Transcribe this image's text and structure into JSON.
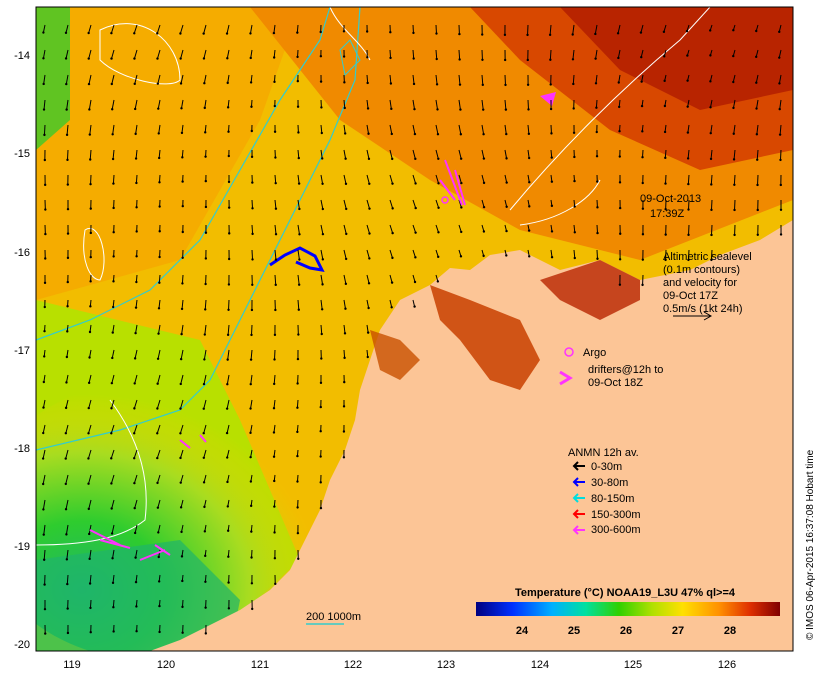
{
  "title_date": "09-Oct-2013",
  "title_time": "17:39Z",
  "altimetry": {
    "line1": "Altimetric sealevel",
    "line2": "(0.1m contours)",
    "line3": "and velocity for",
    "line4": "09-Oct 17Z",
    "line5": "0.5m/s (1kt 24h)"
  },
  "argo_label": "Argo",
  "drifters": {
    "line1": "drifters@12h to",
    "line2": "09-Oct 18Z"
  },
  "anmn": {
    "title": "ANMN 12h av.",
    "items": [
      {
        "label": "0-30m",
        "color": "#000000"
      },
      {
        "label": "30-80m",
        "color": "#0000ff"
      },
      {
        "label": "80-150m",
        "color": "#00dddd"
      },
      {
        "label": "150-300m",
        "color": "#ff0000"
      },
      {
        "label": "300-600m",
        "color": "#ff33ff"
      }
    ]
  },
  "depth_label": "200  1000m",
  "colorbar": {
    "title": "Temperature (°C) NOAA19_L3U 47% ql>=4",
    "ticks": [
      "24",
      "25",
      "26",
      "27",
      "28"
    ]
  },
  "x_ticks": [
    "119",
    "120",
    "121",
    "122",
    "123",
    "124",
    "125",
    "126"
  ],
  "y_ticks": [
    "-14",
    "-15",
    "-16",
    "-17",
    "-18",
    "-19",
    "-20"
  ],
  "credit": "© IMOS 06-Apr-2015 16:37:08 Hobart time",
  "colors": {
    "land": "#fcc596",
    "warm": "#c02a00",
    "mid": "#f7c400",
    "cool": "#21c521"
  }
}
